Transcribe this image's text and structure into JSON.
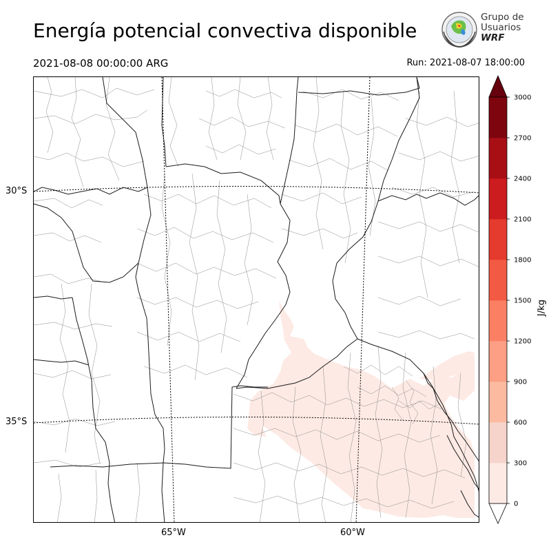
{
  "header": {
    "title": "Energía potencial convectiva disponible",
    "valid_time": "2021-08-08 00:00:00 ARG",
    "run": "Run: 2021-08-07 18:00:00"
  },
  "logo": {
    "line1": "Grupo de",
    "line2": "Usuarios",
    "line3": "WRF"
  },
  "map": {
    "lat_labels": [
      "30°S",
      "35°S"
    ],
    "lon_labels": [
      "65°W",
      "60°W"
    ]
  },
  "colorbar": {
    "unit_label": "J/kg",
    "ticks": [
      "0",
      "300",
      "600",
      "900",
      "1200",
      "1500",
      "1800",
      "2100",
      "2400",
      "2700",
      "3000"
    ],
    "colors": [
      "#fdeae4",
      "#f6d4cb",
      "#fcbba1",
      "#fc9f84",
      "#fb7f63",
      "#f25a44",
      "#e53a2e",
      "#cc1c1f",
      "#a80f15",
      "#7e050e"
    ],
    "over_color": "#67000d"
  },
  "chart_data": {
    "type": "heatmap",
    "title": "Energía potencial convectiva disponible",
    "variable_unit": "J/kg",
    "levels": [
      0,
      300,
      600,
      900,
      1200,
      1500,
      1800,
      2100,
      2400,
      2700,
      3000
    ],
    "extend": "both",
    "graticule_lat": [
      -30,
      -35
    ],
    "graticule_lon": [
      -65,
      -60
    ],
    "dominant_level_range": [
      0,
      300
    ]
  }
}
